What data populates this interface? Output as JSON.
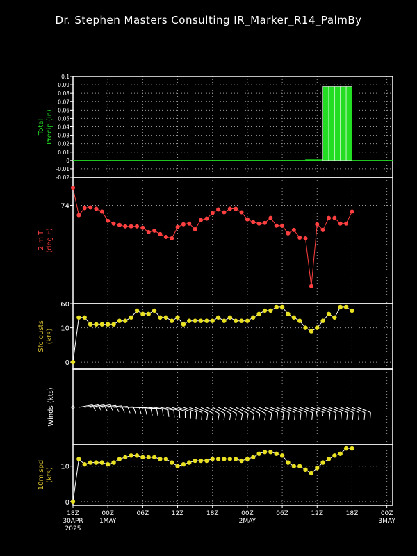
{
  "title": "Dr. Stephen Masters Consulting   IR_Marker_R14_PalmBy",
  "colors": {
    "background": "#000000",
    "frame": "#ffffff",
    "grid": "#9a9a9a",
    "precip_label": "#22dd22",
    "precip_bar": "#22dd22",
    "temp": "#ff4040",
    "gust": "#e8e020",
    "gust_label": "#d8c030",
    "wind_barb": "#ffffff",
    "speed": "#e8e020",
    "speed_label": "#d8c030"
  },
  "time_axis": {
    "tick_labels": [
      {
        "t": 0,
        "lines": [
          "18Z",
          "30APR",
          "2025"
        ]
      },
      {
        "t": 6,
        "lines": [
          "00Z",
          "1MAY"
        ]
      },
      {
        "t": 12,
        "lines": [
          "06Z"
        ]
      },
      {
        "t": 18,
        "lines": [
          "12Z"
        ]
      },
      {
        "t": 24,
        "lines": [
          "18Z"
        ]
      },
      {
        "t": 30,
        "lines": [
          "00Z",
          "2MAY"
        ]
      },
      {
        "t": 36,
        "lines": [
          "06Z"
        ]
      },
      {
        "t": 42,
        "lines": [
          "12Z"
        ]
      },
      {
        "t": 48,
        "lines": [
          "18Z"
        ]
      },
      {
        "t": 54,
        "lines": [
          "00Z",
          "3MAY"
        ]
      }
    ],
    "range": [
      0,
      55
    ]
  },
  "chart_data": [
    {
      "type": "bar",
      "ylabel": [
        "Total",
        "Precip (in)"
      ],
      "ylim": [
        -0.02,
        0.1
      ],
      "yticks": [
        -0.02,
        -0.01,
        0,
        0.01,
        0.02,
        0.03,
        0.04,
        0.05,
        0.06,
        0.07,
        0.08,
        0.09,
        0.1
      ],
      "ytick_labels": [
        "-0.02",
        "-0.01",
        "0",
        "0.01",
        "0.02",
        "0.03",
        "0.04",
        "0.05",
        "0.06",
        "0.07",
        "0.08",
        "0.09",
        "0.1"
      ],
      "grid": true,
      "x": [
        0,
        1,
        2,
        3,
        4,
        5,
        6,
        7,
        8,
        9,
        10,
        11,
        12,
        13,
        14,
        15,
        16,
        17,
        18,
        19,
        20,
        21,
        22,
        23,
        24,
        25,
        26,
        27,
        28,
        29,
        30,
        31,
        32,
        33,
        34,
        35,
        36,
        37,
        38,
        39,
        40,
        41,
        42,
        43,
        44,
        45,
        46,
        47,
        48
      ],
      "values": [
        0,
        0,
        0,
        0,
        0,
        0,
        0,
        0,
        0,
        0,
        0,
        0,
        0,
        0,
        0,
        0,
        0,
        0,
        0,
        0,
        0,
        0,
        0,
        0,
        0,
        0,
        0,
        0,
        0,
        0,
        0,
        0,
        0,
        0,
        0,
        0,
        0,
        0,
        0,
        0,
        0,
        0.001,
        0.001,
        0.001,
        0.088,
        0.088,
        0.088,
        0.088,
        0.088
      ]
    },
    {
      "type": "line",
      "ylabel": [
        "2 m T",
        "(deg F)"
      ],
      "ylim": [
        60,
        78
      ],
      "yticks": [
        60,
        74
      ],
      "ytick_labels": [
        "60",
        "74"
      ],
      "grid": true,
      "x": [
        0,
        1,
        2,
        3,
        4,
        5,
        6,
        7,
        8,
        9,
        10,
        11,
        12,
        13,
        14,
        15,
        16,
        17,
        18,
        19,
        20,
        21,
        22,
        23,
        24,
        25,
        26,
        27,
        28,
        29,
        30,
        31,
        32,
        33,
        34,
        35,
        36,
        37,
        38,
        39,
        40,
        41,
        42,
        43,
        44,
        45,
        46,
        47,
        48,
        49
      ],
      "values": [
        76.5,
        72.6,
        73.6,
        73.7,
        73.5,
        73.1,
        71.8,
        71.4,
        71.2,
        71.0,
        71.0,
        71.0,
        70.8,
        70.2,
        70.4,
        69.9,
        69.5,
        69.3,
        70.9,
        71.3,
        71.4,
        70.6,
        71.9,
        72.1,
        72.9,
        73.4,
        73.0,
        73.5,
        73.5,
        73.0,
        72.0,
        71.6,
        71.4,
        71.5,
        72.2,
        71.1,
        71.1,
        70.0,
        70.5,
        69.4,
        69.3,
        62.5,
        71.3,
        70.5,
        72.2,
        72.2,
        71.4,
        71.4,
        73.1,
        null
      ]
    },
    {
      "type": "line",
      "ylabel": [
        "Sfc gusts",
        "(kts)"
      ],
      "ylim": [
        -2,
        17
      ],
      "yticks": [
        0,
        10
      ],
      "ytick_labels": [
        "0",
        "10"
      ],
      "grid": true,
      "x": [
        0,
        1,
        2,
        3,
        4,
        5,
        6,
        7,
        8,
        9,
        10,
        11,
        12,
        13,
        14,
        15,
        16,
        17,
        18,
        19,
        20,
        21,
        22,
        23,
        24,
        25,
        26,
        27,
        28,
        29,
        30,
        31,
        32,
        33,
        34,
        35,
        36,
        37,
        38,
        39,
        40,
        41,
        42,
        43,
        44,
        45,
        46,
        47,
        48
      ],
      "values": [
        0,
        13,
        13,
        11,
        11,
        11,
        11,
        11,
        12,
        12,
        13,
        15,
        14,
        14,
        15,
        13,
        13,
        12,
        13,
        11,
        12,
        12,
        12,
        12,
        12,
        13,
        12,
        13,
        12,
        12,
        12,
        13,
        14,
        15,
        15,
        16,
        16,
        14,
        13,
        12,
        10,
        9,
        10,
        12,
        14,
        13,
        16,
        16,
        15
      ]
    },
    {
      "type": "wind_barbs",
      "ylabel": [
        "Winds (kts)"
      ],
      "x": [
        0,
        1,
        2,
        3,
        4,
        5,
        6,
        7,
        8,
        9,
        10,
        11,
        12,
        13,
        14,
        15,
        16,
        17,
        18,
        19,
        20,
        21,
        22,
        23,
        24,
        25,
        26,
        27,
        28,
        29,
        30,
        31,
        32,
        33,
        34,
        35,
        36,
        37,
        38,
        39,
        40,
        41,
        42,
        43,
        44,
        45,
        46,
        47,
        48,
        49
      ],
      "speed_kts": [
        0,
        12,
        11,
        11,
        11,
        11,
        11,
        12,
        12,
        12,
        13,
        13,
        13,
        12,
        12,
        11,
        11,
        12,
        12,
        11,
        11,
        11,
        11,
        12,
        12,
        12,
        12,
        12,
        12,
        12,
        12,
        12,
        13,
        14,
        14,
        14,
        13,
        12,
        11,
        10,
        9,
        9,
        10,
        11,
        11,
        12,
        13,
        13,
        14,
        14
      ],
      "direction_deg": [
        0,
        80,
        80,
        80,
        80,
        82,
        84,
        86,
        88,
        90,
        92,
        94,
        96,
        98,
        100,
        102,
        104,
        106,
        108,
        110,
        112,
        114,
        116,
        116,
        116,
        116,
        116,
        116,
        116,
        116,
        116,
        116,
        114,
        112,
        112,
        112,
        112,
        112,
        112,
        112,
        112,
        112,
        112,
        112,
        112,
        112,
        112,
        112,
        112,
        112
      ]
    },
    {
      "type": "line",
      "ylabel": [
        "10m spd",
        "(kts)"
      ],
      "ylim": [
        -1,
        16
      ],
      "yticks": [
        0,
        10
      ],
      "ytick_labels": [
        "0",
        "10"
      ],
      "grid": true,
      "x": [
        0,
        1,
        2,
        3,
        4,
        5,
        6,
        7,
        8,
        9,
        10,
        11,
        12,
        13,
        14,
        15,
        16,
        17,
        18,
        19,
        20,
        21,
        22,
        23,
        24,
        25,
        26,
        27,
        28,
        29,
        30,
        31,
        32,
        33,
        34,
        35,
        36,
        37,
        38,
        39,
        40,
        41,
        42,
        43,
        44,
        45,
        46,
        47,
        48
      ],
      "values": [
        0,
        12,
        10.5,
        11,
        11,
        11,
        10.5,
        11,
        12,
        12.5,
        13,
        13,
        12.5,
        12.5,
        12.5,
        12,
        12,
        11,
        10,
        10.5,
        11,
        11.5,
        11.5,
        11.5,
        12,
        12,
        12,
        12,
        12,
        11.5,
        12,
        12.5,
        13.5,
        14,
        14,
        13.5,
        13,
        11,
        10,
        10,
        9,
        8,
        9.5,
        11,
        12,
        13,
        13.5,
        15,
        15
      ]
    }
  ]
}
